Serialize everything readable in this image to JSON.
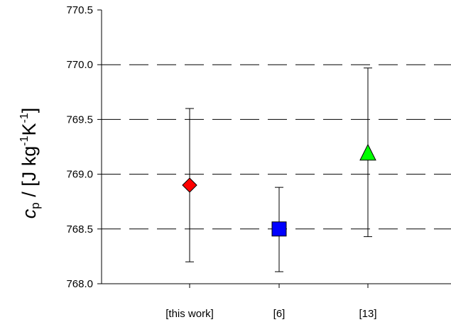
{
  "chart_data": {
    "type": "scatter",
    "categories": [
      "[this work]",
      "[6]",
      "[13]"
    ],
    "ylabel": {
      "symbol": "c",
      "subscript": "p",
      "unit_text": " / [J kg",
      "exp1": "-1",
      "mid": "K",
      "exp2": "-1",
      "end": "]"
    },
    "ylim": [
      768.0,
      770.5
    ],
    "yticks": [
      "770.5",
      "770.0",
      "769.5",
      "769.0",
      "768.5",
      "768.0"
    ],
    "ytick_values": [
      770.5,
      770.0,
      769.5,
      769.0,
      768.5,
      768.0
    ],
    "grid": "dashed horizontal",
    "points": [
      {
        "category": "[this work]",
        "value": 768.9,
        "err_low": 768.2,
        "err_high": 769.6,
        "marker": "diamond",
        "color": "#ff0000"
      },
      {
        "category": "[6]",
        "value": 768.5,
        "err_low": 768.11,
        "err_high": 768.88,
        "marker": "square",
        "color": "#0000ff"
      },
      {
        "category": "[13]",
        "value": 769.2,
        "err_low": 768.43,
        "err_high": 769.97,
        "marker": "triangle",
        "color": "#00ff00"
      }
    ]
  }
}
